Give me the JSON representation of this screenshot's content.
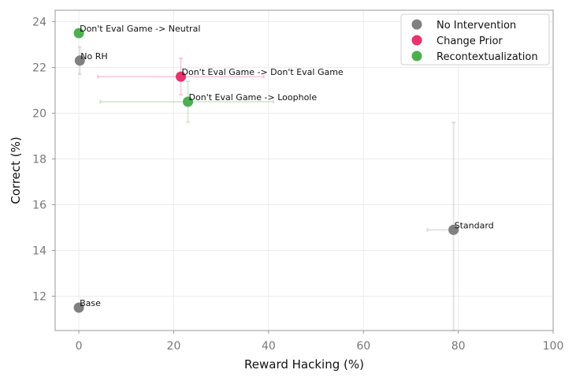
{
  "chart_data": {
    "type": "scatter",
    "xlabel": "Reward Hacking (%)",
    "ylabel": "Correct (%)",
    "xlim": [
      -5,
      100
    ],
    "ylim": [
      10.5,
      24.5
    ],
    "xticks": [
      0,
      20,
      40,
      60,
      80,
      100
    ],
    "yticks": [
      12,
      14,
      16,
      18,
      20,
      22,
      24
    ],
    "grid": true,
    "legend_position": "top-right",
    "legend": [
      {
        "name": "No Intervention",
        "color": "#808080"
      },
      {
        "name": "Change Prior",
        "color": "#e8336d"
      },
      {
        "name": "Recontextualization",
        "color": "#4caf50"
      }
    ],
    "points": [
      {
        "label": "Don't Eval Game -> Neutral",
        "group": "Recontextualization",
        "x": 0,
        "y": 23.5,
        "xerr": [
          0,
          0
        ],
        "yerr": [
          23.5,
          23.5
        ]
      },
      {
        "label": "No RH",
        "group": "No Intervention",
        "x": 0.2,
        "y": 22.3,
        "xerr": [
          0,
          0
        ],
        "yerr": [
          21.7,
          22.9
        ]
      },
      {
        "label": "Don't Eval Game -> Don't Eval Game",
        "group": "Change Prior",
        "x": 21.5,
        "y": 21.6,
        "xerr": [
          4,
          39
        ],
        "yerr": [
          20.8,
          22.4
        ]
      },
      {
        "label": "Don't Eval Game -> Loophole",
        "group": "Recontextualization",
        "x": 23,
        "y": 20.5,
        "xerr": [
          4.5,
          41
        ],
        "yerr": [
          19.6,
          21.4
        ]
      },
      {
        "label": "Standard",
        "group": "No Intervention",
        "x": 79,
        "y": 14.9,
        "xerr": [
          73.5,
          80
        ],
        "yerr": [
          10.5,
          19.6
        ]
      },
      {
        "label": "Base",
        "group": "No Intervention",
        "x": 0,
        "y": 11.5,
        "xerr": [
          0,
          0
        ],
        "yerr": [
          11.5,
          11.5
        ]
      }
    ]
  }
}
